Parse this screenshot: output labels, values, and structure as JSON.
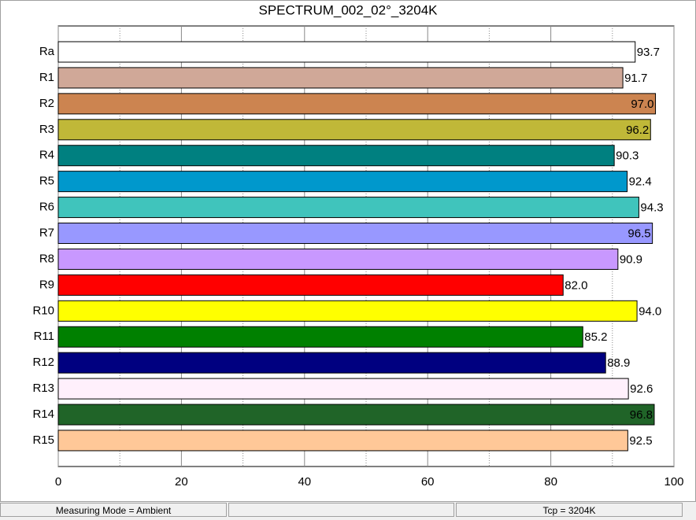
{
  "chart_data": {
    "type": "bar",
    "orientation": "horizontal",
    "title": "SPECTRUM_002_02°_3204K",
    "categories": [
      "Ra",
      "R1",
      "R2",
      "R3",
      "R4",
      "R5",
      "R6",
      "R7",
      "R8",
      "R9",
      "R10",
      "R11",
      "R12",
      "R13",
      "R14",
      "R15"
    ],
    "values": [
      93.7,
      91.7,
      97.0,
      96.2,
      90.3,
      92.4,
      94.3,
      96.5,
      90.9,
      82.0,
      94.0,
      85.2,
      88.9,
      92.6,
      96.8,
      92.5
    ],
    "value_labels": [
      "93.7",
      "91.7",
      "97.0",
      "96.2",
      "90.3",
      "92.4",
      "94.3",
      "96.5",
      "90.9",
      "82.0",
      "94.0",
      "85.2",
      "88.9",
      "92.6",
      "96.8",
      "92.5"
    ],
    "colors": [
      "#ffffff",
      "#d0a898",
      "#cc8450",
      "#c0b838",
      "#008080",
      "#0098cc",
      "#40c4bc",
      "#9898ff",
      "#c898ff",
      "#ff0000",
      "#ffff00",
      "#008000",
      "#000080",
      "#fff0fc",
      "#206428",
      "#ffc898"
    ],
    "xlim": [
      0,
      100
    ],
    "xticks": [
      0,
      20,
      40,
      60,
      80,
      100
    ],
    "xminorticks": [
      10,
      30,
      50,
      70,
      90
    ],
    "grid": true
  },
  "status_bar": {
    "left": "Measuring Mode = Ambient",
    "right": "Tcp = 3204K"
  }
}
